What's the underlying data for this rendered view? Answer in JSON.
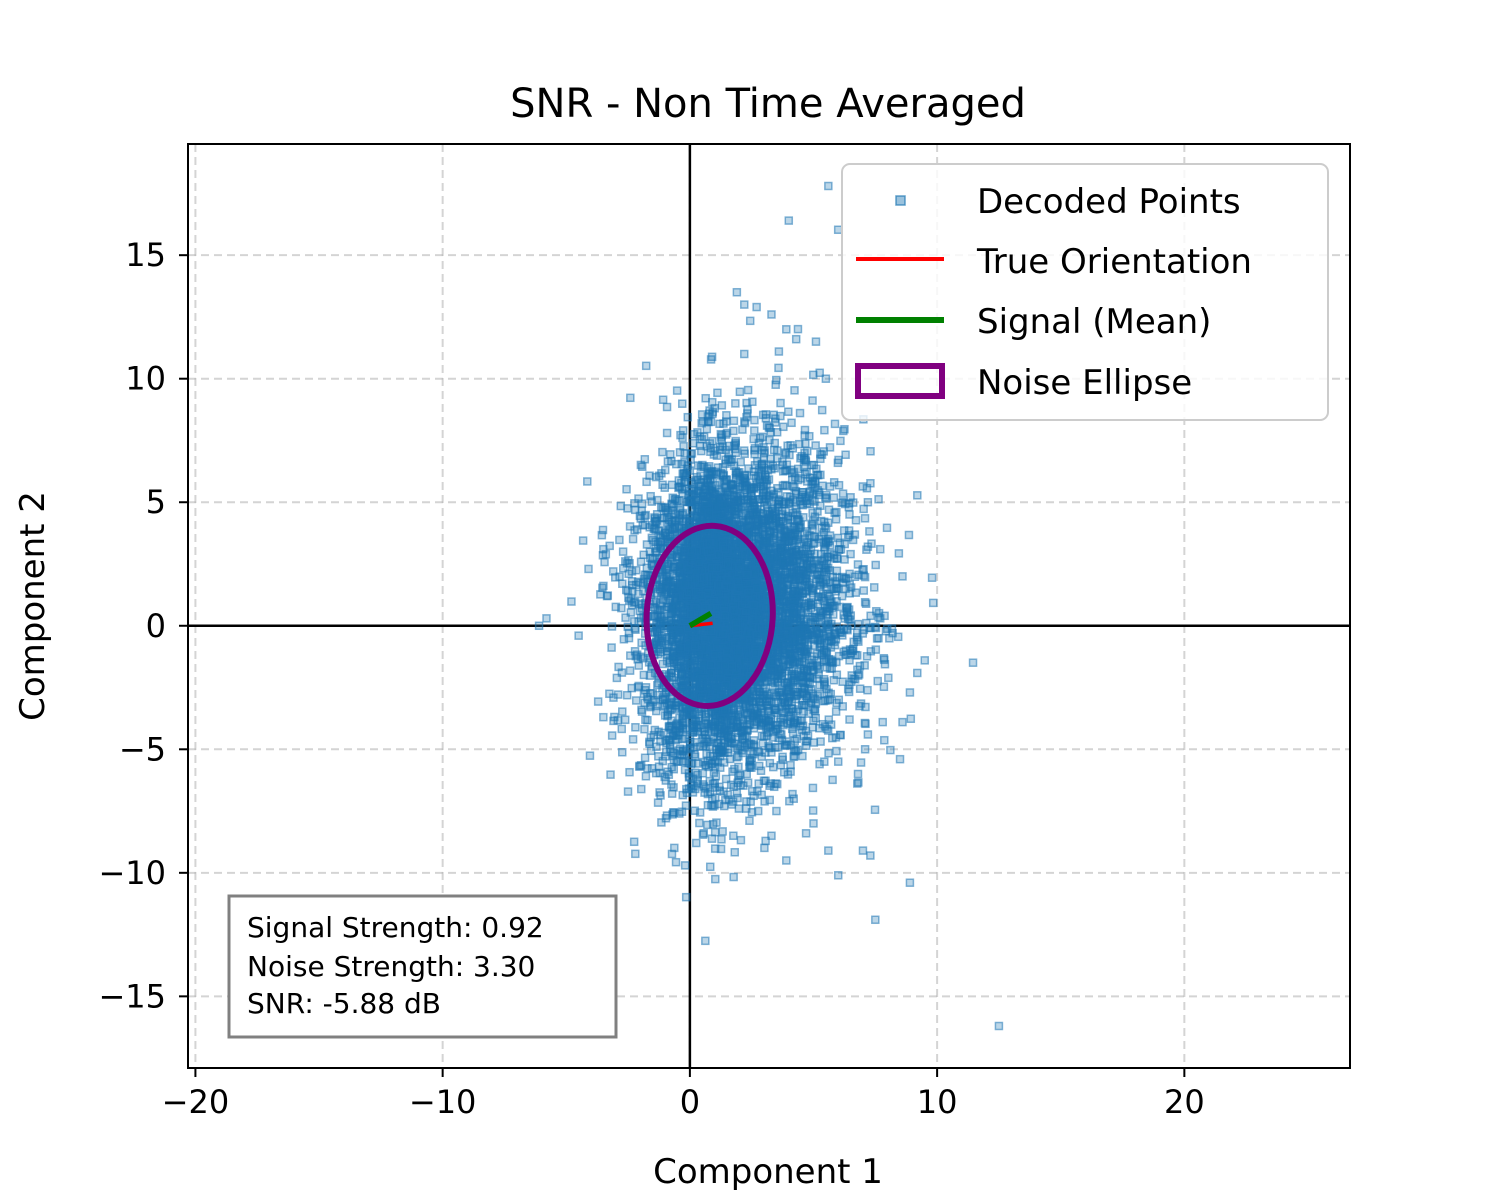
{
  "chart_data": {
    "type": "scatter",
    "title": "SNR - Non Time Averaged",
    "xlabel": "Component 1",
    "ylabel": "Component 2",
    "xlim": [
      -20.3,
      26.7
    ],
    "ylim": [
      -17.9,
      19.5
    ],
    "xticks": [
      -20,
      -10,
      0,
      10,
      20
    ],
    "xtick_labels": [
      "−20",
      "−10",
      "0",
      "10",
      "20"
    ],
    "yticks": [
      -15,
      -10,
      -5,
      0,
      5,
      10,
      15
    ],
    "ytick_labels": [
      "−15",
      "−10",
      "−5",
      "0",
      "5",
      "10",
      "15"
    ],
    "grid": true,
    "legend_position": "top-right",
    "series": [
      {
        "name": "Decoded Points",
        "kind": "scatter",
        "color": "#1f77b4",
        "distribution": {
          "count": 6000,
          "center": [
            1.6,
            0.6
          ],
          "spread": [
            2.0,
            3.2
          ],
          "skew_direction": "upper-right and lower-right tails"
        },
        "outliers": [
          [
            5.6,
            17.8
          ],
          [
            4.0,
            16.4
          ],
          [
            1.9,
            13.5
          ],
          [
            2.2,
            13.0
          ],
          [
            2.7,
            12.9
          ],
          [
            3.3,
            12.6
          ],
          [
            3.9,
            12.0
          ],
          [
            4.3,
            11.6
          ],
          [
            5.1,
            11.5
          ],
          [
            2.2,
            11.0
          ],
          [
            3.6,
            11.1
          ],
          [
            5.5,
            10.0
          ],
          [
            -3.5,
            3.1
          ],
          [
            -2.7,
            3.0
          ],
          [
            -3.1,
            2.2
          ],
          [
            -4.1,
            2.3
          ],
          [
            -5.8,
            0.3
          ],
          [
            -6.1,
            0.0
          ],
          [
            -4.5,
            -0.4
          ],
          [
            -3.5,
            -3.7
          ],
          [
            6.2,
            5.0
          ],
          [
            6.5,
            5.2
          ],
          [
            7.2,
            5.0
          ],
          [
            7.2,
            3.2
          ],
          [
            7.7,
            3.1
          ],
          [
            8.6,
            2.0
          ],
          [
            7.7,
            0.3
          ],
          [
            8.2,
            -0.3
          ],
          [
            9.5,
            -1.4
          ],
          [
            8.9,
            -2.7
          ],
          [
            7.8,
            -3.9
          ],
          [
            8.6,
            -3.9
          ],
          [
            7.2,
            -4.4
          ],
          [
            8.5,
            -5.4
          ],
          [
            6.0,
            -5.5
          ],
          [
            5.0,
            -8.0
          ],
          [
            3.3,
            -8.5
          ],
          [
            4.7,
            -8.4
          ],
          [
            5.6,
            -9.1
          ],
          [
            7.0,
            -9.1
          ],
          [
            7.3,
            -9.3
          ],
          [
            3.9,
            -9.5
          ],
          [
            6.0,
            -10.1
          ],
          [
            8.9,
            -10.4
          ],
          [
            7.5,
            -11.9
          ],
          [
            12.5,
            -16.2
          ],
          [
            3.5,
            -7.5
          ],
          [
            4.2,
            -7.0
          ],
          [
            2.3,
            -6.0
          ],
          [
            1.8,
            -5.8
          ],
          [
            6.8,
            -6.0
          ],
          [
            6.3,
            1.5
          ],
          [
            6.5,
            2.9
          ]
        ]
      },
      {
        "name": "True Orientation",
        "kind": "line",
        "color": "#ff0000",
        "x": [
          0,
          0.92
        ],
        "y": [
          0,
          0.1
        ]
      },
      {
        "name": "Signal (Mean)",
        "kind": "line",
        "color": "#008000",
        "x": [
          0,
          0.85
        ],
        "y": [
          0,
          0.5
        ]
      },
      {
        "name": "Noise Ellipse",
        "kind": "ellipse",
        "color": "#800080",
        "center": [
          0.8,
          0.4
        ],
        "width": 5.1,
        "height": 7.3,
        "angle_deg": 3
      }
    ],
    "annotation": {
      "position": "bottom-left",
      "lines": [
        "Signal Strength: 0.92",
        "Noise Strength: 3.30",
        "SNR: -5.88 dB"
      ]
    }
  }
}
